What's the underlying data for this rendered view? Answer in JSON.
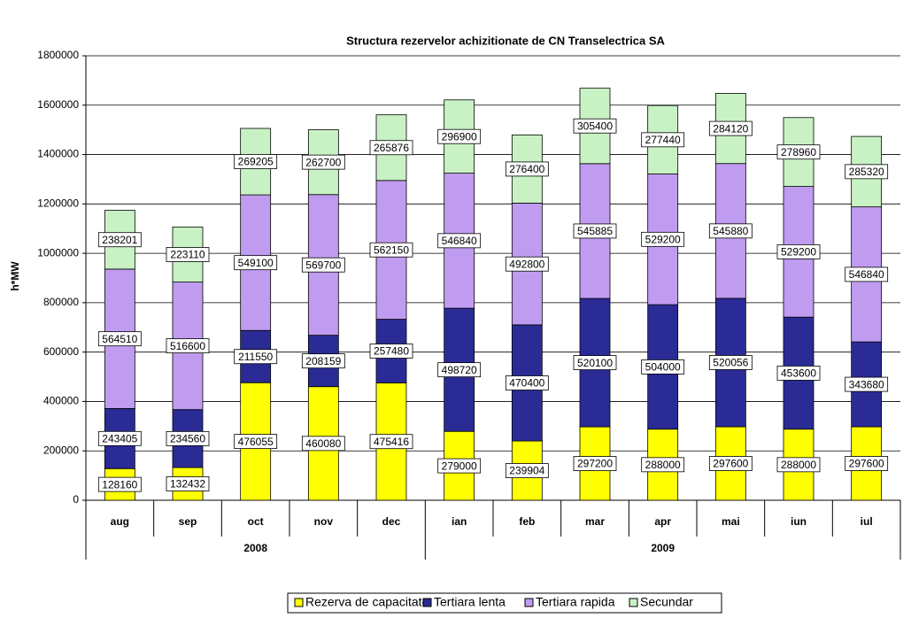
{
  "chart_data": {
    "type": "stacked_bar",
    "title": "Structura rezervelor achizitionate de CN Transelectrica SA",
    "ylabel": "h*MW",
    "categories": [
      "aug",
      "sep",
      "oct",
      "nov",
      "dec",
      "ian",
      "feb",
      "mar",
      "apr",
      "mai",
      "iun",
      "iul"
    ],
    "groups": [
      {
        "name": "2008",
        "size": 5
      },
      {
        "name": "2009",
        "size": 7
      }
    ],
    "series": [
      {
        "name": "Rezerva de capacitate",
        "color": "#ffff00",
        "values": [
          128160,
          132432,
          476055,
          460080,
          475416,
          279000,
          239904,
          297200,
          288000,
          297600,
          288000,
          297600
        ]
      },
      {
        "name": "Tertiara lenta",
        "color": "#2b2b96",
        "values": [
          243405,
          234560,
          211550,
          208159,
          257480,
          498720,
          470400,
          520100,
          504000,
          520056,
          453600,
          343680
        ]
      },
      {
        "name": "Tertiara rapida",
        "color": "#c09cf0",
        "values": [
          564510,
          516600,
          549100,
          569700,
          562150,
          546840,
          492800,
          545885,
          529200,
          545880,
          529200,
          546840
        ]
      },
      {
        "name": "Secundar",
        "color": "#c8f2c4",
        "values": [
          238201,
          223110,
          269205,
          262700,
          265876,
          296900,
          276400,
          305400,
          277440,
          284120,
          278960,
          285320
        ]
      }
    ],
    "ylim": [
      0,
      1800000
    ],
    "yticks": [
      0,
      200000,
      400000,
      600000,
      800000,
      1000000,
      1200000,
      1400000,
      1600000,
      1800000
    ],
    "grid": true,
    "legend": "bottom"
  }
}
